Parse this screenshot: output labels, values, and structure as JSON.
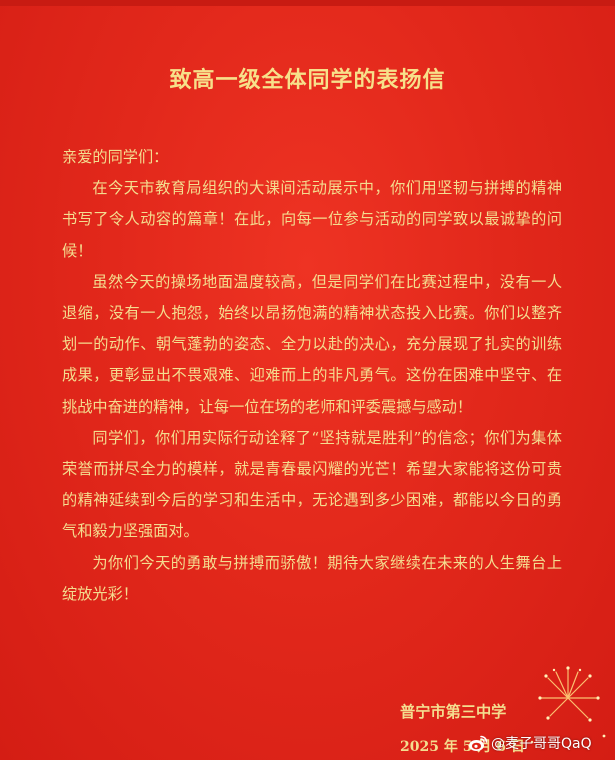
{
  "letter": {
    "title": "致高一级全体同学的表扬信",
    "greeting": "亲爱的同学们：",
    "paragraphs": [
      "在今天市教育局组织的大课间活动展示中，你们用坚韧与拼搏的精神书写了令人动容的篇章！在此，向每一位参与活动的同学致以最诚挚的问候！",
      "虽然今天的操场地面温度较高，但是同学们在比赛过程中，没有一人退缩，没有一人抱怨，始终以昂扬饱满的精神状态投入比赛。你们以整齐划一的动作、朝气蓬勃的姿态、全力以赴的决心，充分展现了扎实的训练成果，更彰显出不畏艰难、迎难而上的非凡勇气。这份在困难中坚守、在挑战中奋进的精神，让每一位在场的老师和评委震撼与感动！",
      "同学们，你们用实际行动诠释了“坚持就是胜利”的信念；你们为集体荣誉而拼尽全力的模样，就是青春最闪耀的光芒！希望大家能将这份可贵的精神延续到今后的学习和生活中，无论遇到多少困难，都能以今日的勇气和毅力坚强面对。",
      "为你们今天的勇敢与拼搏而骄傲！期待大家继续在未来的人生舞台上绽放光彩！"
    ],
    "signature": "普宁市第三中学",
    "date": "2025 年 5 月 6 日"
  },
  "watermark": {
    "text": "@麦子哥哥QaQ",
    "icon": "weibo-icon"
  },
  "colors": {
    "background": "#e02418",
    "text": "#f4dd8f",
    "title": "#f7e08a",
    "watermark": "#ffffff"
  }
}
